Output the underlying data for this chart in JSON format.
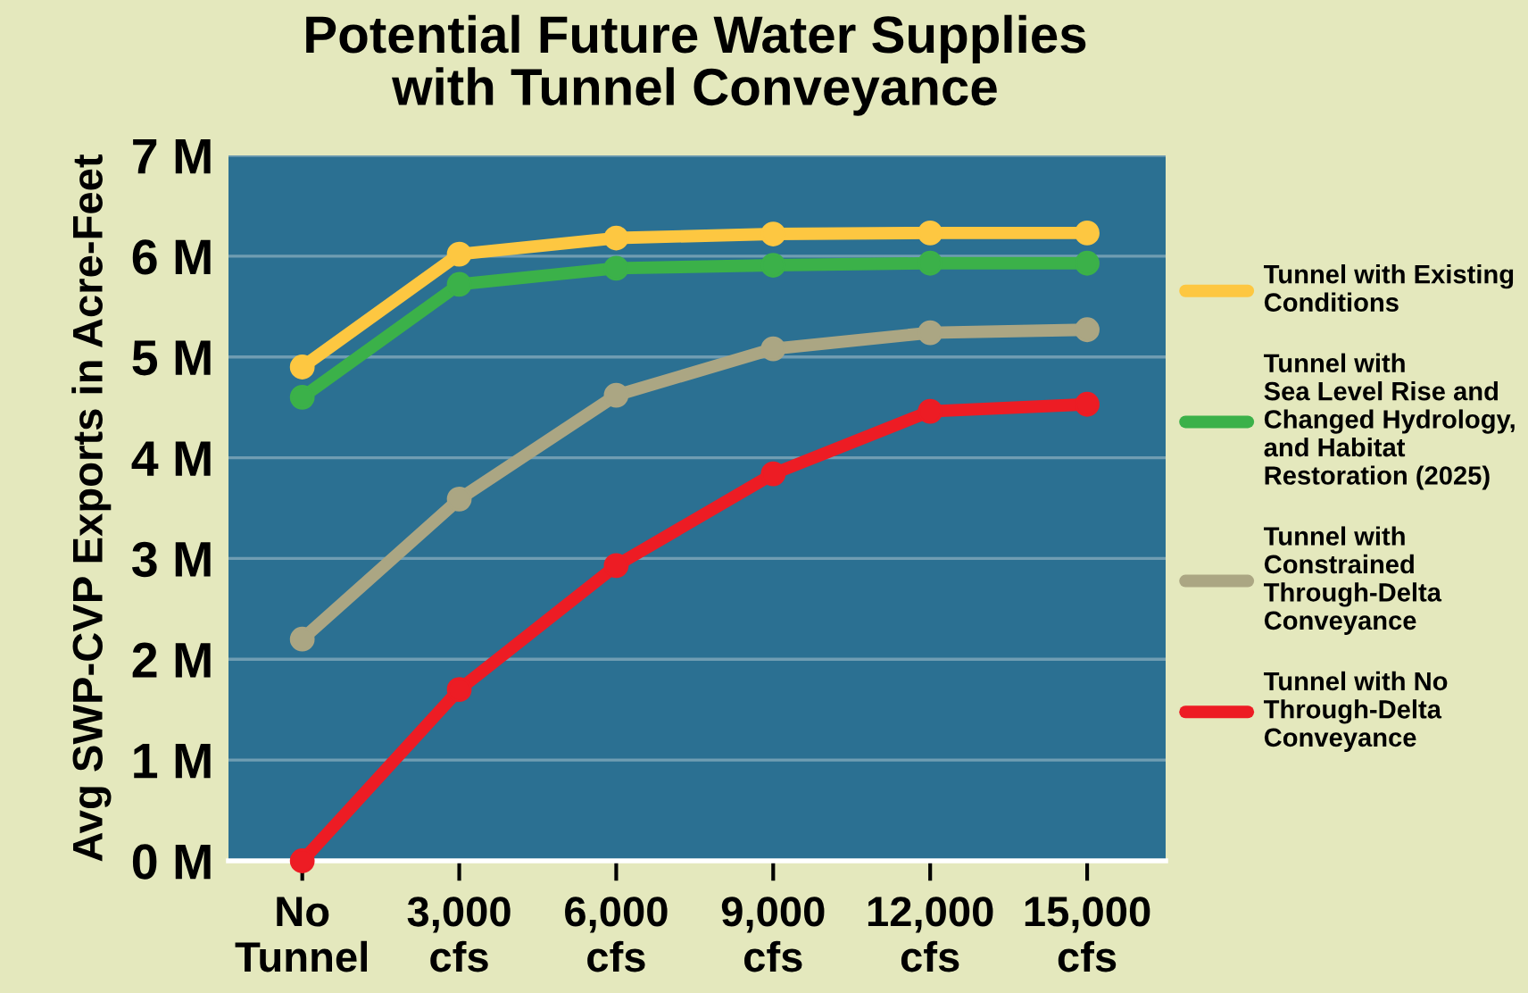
{
  "chart_data": {
    "type": "line",
    "title": "Potential Future Water Supplies\nwith Tunnel Conveyance",
    "ylabel": "Avg SWP-CVP Exports in Acre-Feet",
    "categories": [
      "No\nTunnel",
      "3,000\ncfs",
      "6,000\ncfs",
      "9,000\ncfs",
      "12,000\ncfs",
      "15,000\ncfs"
    ],
    "series": [
      {
        "name": "Tunnel with Existing\nConditions",
        "color": "#fdc741",
        "values": [
          4.9,
          6.02,
          6.18,
          6.22,
          6.23,
          6.23
        ]
      },
      {
        "name": "Tunnel with\nSea Level Rise and\nChanged Hydrology,\nand Habitat\nRestoration (2025)",
        "color": "#3bb149",
        "values": [
          4.6,
          5.72,
          5.88,
          5.91,
          5.93,
          5.93
        ]
      },
      {
        "name": "Tunnel with\nConstrained\nThrough-Delta\nConveyance",
        "color": "#aba683",
        "values": [
          2.2,
          3.59,
          4.62,
          5.08,
          5.24,
          5.27
        ]
      },
      {
        "name": "Tunnel with No\nThrough-Delta\nConveyance",
        "color": "#ed1c24",
        "values": [
          0,
          1.7,
          2.93,
          3.84,
          4.46,
          4.53
        ]
      }
    ],
    "ylim": [
      0,
      7
    ],
    "yticks": [
      {
        "value": 0,
        "label": "0 M"
      },
      {
        "value": 1,
        "label": "1 M"
      },
      {
        "value": 2,
        "label": "2 M"
      },
      {
        "value": 3,
        "label": "3 M"
      },
      {
        "value": 4,
        "label": "4 M"
      },
      {
        "value": 5,
        "label": "5 M"
      },
      {
        "value": 6,
        "label": "6 M"
      },
      {
        "value": 7,
        "label": "7 M"
      }
    ],
    "grid": "y",
    "legend": "right",
    "marker": "circle",
    "line_style": "solid"
  }
}
